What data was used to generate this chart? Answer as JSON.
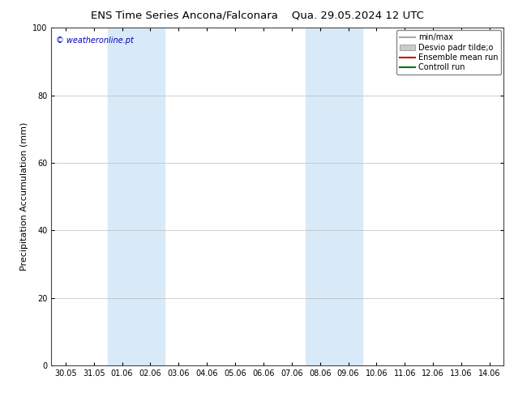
{
  "title_left": "ENS Time Series Ancona/Falconara",
  "title_right": "Qua. 29.05.2024 12 UTC",
  "ylabel": "Precipitation Accumulation (mm)",
  "watermark": "© weatheronline.pt",
  "ylim": [
    0,
    100
  ],
  "yticks": [
    0,
    20,
    40,
    60,
    80,
    100
  ],
  "xtick_labels": [
    "30.05",
    "31.05",
    "01.06",
    "02.06",
    "03.06",
    "04.06",
    "05.06",
    "06.06",
    "07.06",
    "08.06",
    "09.06",
    "10.06",
    "11.06",
    "12.06",
    "13.06",
    "14.06"
  ],
  "shaded_regions": [
    {
      "xstart": "01.06",
      "xend": "03.06",
      "color": "#d8eaf8"
    },
    {
      "xstart": "08.06",
      "xend": "10.06",
      "color": "#d8eaf8"
    }
  ],
  "legend_entries": [
    {
      "label": "min/max",
      "color": "#aaaaaa",
      "type": "line",
      "lw": 1.5
    },
    {
      "label": "Desvio padr tilde;o",
      "color": "#cccccc",
      "type": "rect"
    },
    {
      "label": "Ensemble mean run",
      "color": "#cc0000",
      "type": "line",
      "lw": 1.5
    },
    {
      "label": "Controll run",
      "color": "#007700",
      "type": "line",
      "lw": 1.5
    }
  ],
  "background_color": "#ffffff",
  "plot_bg_color": "#ffffff",
  "grid_color": "#bbbbbb",
  "watermark_color": "#0000bb",
  "title_fontsize": 9.5,
  "axis_label_fontsize": 8,
  "tick_fontsize": 7,
  "legend_fontsize": 7
}
